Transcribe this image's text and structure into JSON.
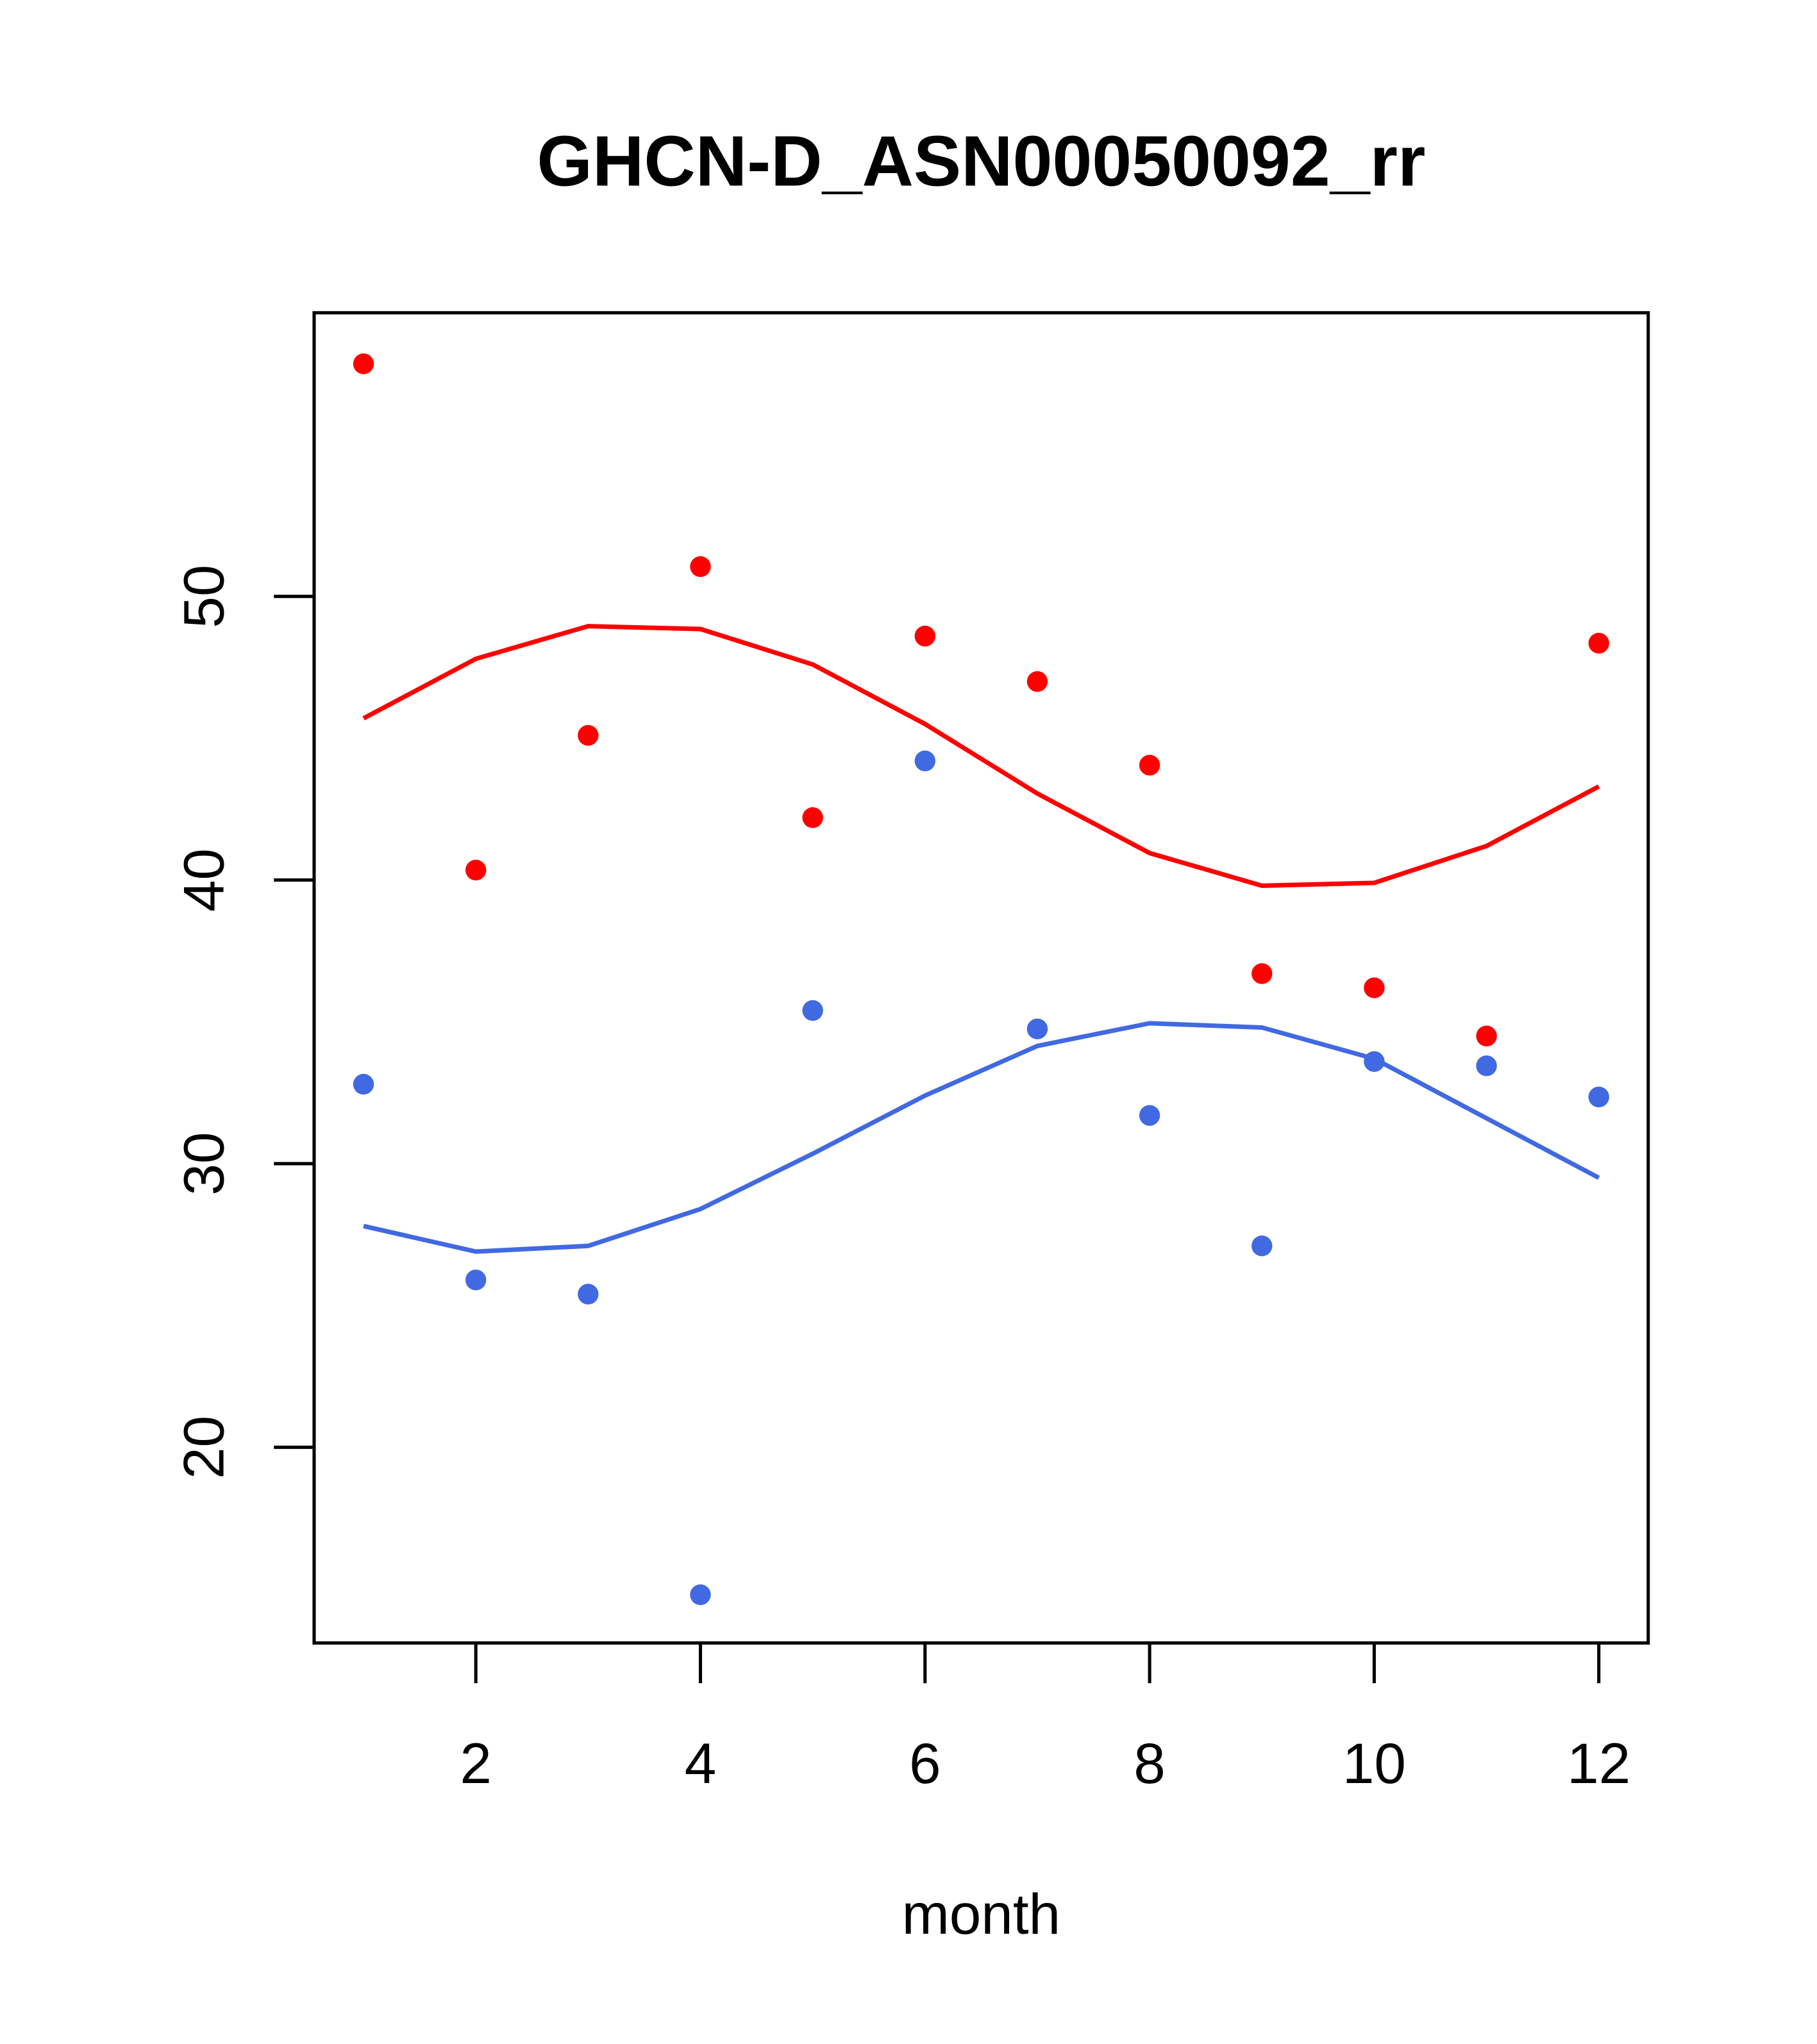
{
  "chart_data": {
    "type": "scatter",
    "title": "GHCN-D_ASN00050092_rr",
    "xlabel": "month",
    "ylabel": "",
    "xlim": [
      0.56,
      12.44
    ],
    "ylim": [
      13.1,
      60.0
    ],
    "xticks": [
      2,
      4,
      6,
      8,
      10,
      12
    ],
    "yticks": [
      20,
      30,
      40,
      50
    ],
    "grid": false,
    "legend": "none",
    "x": [
      1,
      2,
      3,
      4,
      5,
      6,
      7,
      8,
      9,
      10,
      11,
      12
    ],
    "series": [
      {
        "name": "red points",
        "kind": "points",
        "color": "#ff0000",
        "values": [
          58.2,
          40.35,
          45.1,
          51.05,
          42.2,
          48.6,
          47.0,
          44.05,
          36.7,
          36.2,
          34.5,
          48.35
        ]
      },
      {
        "name": "red line",
        "kind": "line",
        "color": "#ff0000",
        "values": [
          45.7,
          47.8,
          48.95,
          48.85,
          47.6,
          45.5,
          43.05,
          40.95,
          39.8,
          39.9,
          41.2,
          43.3
        ]
      },
      {
        "name": "blue points",
        "kind": "points",
        "color": "#4169e1",
        "values": [
          32.8,
          25.9,
          25.4,
          14.8,
          35.4,
          44.2,
          34.75,
          31.7,
          27.1,
          33.6,
          33.45,
          32.35
        ]
      },
      {
        "name": "blue line",
        "kind": "line",
        "color": "#4169e1",
        "values": [
          27.8,
          26.9,
          27.1,
          28.4,
          30.35,
          32.4,
          34.15,
          34.95,
          34.8,
          33.7,
          31.6,
          29.5
        ]
      }
    ]
  }
}
